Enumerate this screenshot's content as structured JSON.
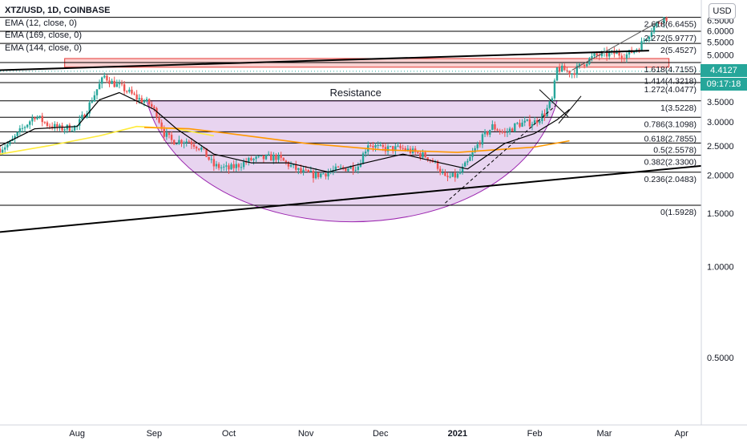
{
  "symbol_title": "XTZ/USD, 1D, COINBASE",
  "indicators": [
    "EMA (12, close, 0)",
    "EMA (169, close, 0)",
    "EMA (144, close, 0)"
  ],
  "currency": "USD",
  "current_price": "4.4127",
  "countdown": "09:17:18",
  "colors": {
    "up": "#26a69a",
    "down": "#ef5350",
    "ema12": "#000000",
    "ema169": "#ff9800",
    "ema144": "#ffeb3b",
    "zone_fill": "#f7b8b8",
    "zone_border": "#e53935",
    "cup_fill": "#d9b8e6",
    "cup_stroke": "#9c27b0"
  },
  "chart_data": {
    "type": "candlestick",
    "title": "XTZ/USD, 1D, COINBASE",
    "y_scale": "log",
    "ylim": [
      0.3,
      7.4
    ],
    "y_ticks": [
      6.5,
      6.0,
      5.5,
      5.0,
      4.5,
      4.0,
      3.5,
      3.0,
      2.5,
      2.0,
      1.5,
      1.0,
      0.5
    ],
    "y_tick_labels": [
      "6.5000",
      "6.0000",
      "5.5000",
      "5.0000",
      "4.5000",
      "4.0000",
      "3.5000",
      "3.0000",
      "2.5000",
      "2.0000",
      "1.5000",
      "1.0000",
      "0.5000"
    ],
    "x_range": [
      "2020-07-01",
      "2021-04-09"
    ],
    "x_ticks": [
      {
        "date": "2020-08-01",
        "label": "Aug"
      },
      {
        "date": "2020-09-01",
        "label": "Sep"
      },
      {
        "date": "2020-10-01",
        "label": "Oct"
      },
      {
        "date": "2020-11-01",
        "label": "Nov"
      },
      {
        "date": "2020-12-01",
        "label": "Dec"
      },
      {
        "date": "2021-01-01",
        "label": "2021"
      },
      {
        "date": "2021-02-01",
        "label": "Feb"
      },
      {
        "date": "2021-03-01",
        "label": "Mar"
      },
      {
        "date": "2021-04-01",
        "label": "Apr"
      }
    ],
    "fib_levels": [
      {
        "ratio": "2.618",
        "value": 6.6455
      },
      {
        "ratio": "2.272",
        "value": 5.9777
      },
      {
        "ratio": "2",
        "value": 5.4527
      },
      {
        "ratio": "1.618",
        "value": 4.7155
      },
      {
        "ratio": "1.414",
        "value": 4.3218
      },
      {
        "ratio": "1.272",
        "value": 4.0477
      },
      {
        "ratio": "1",
        "value": 3.5228
      },
      {
        "ratio": "0.786",
        "value": 3.1098
      },
      {
        "ratio": "0.618",
        "value": 2.7855
      },
      {
        "ratio": "0.5",
        "value": 2.5578
      },
      {
        "ratio": "0.382",
        "value": 2.33
      },
      {
        "ratio": "0.236",
        "value": 2.0483
      },
      {
        "ratio": "0",
        "value": 1.5928
      }
    ],
    "resistance_label": "Resistance",
    "resistance_level": 3.5228,
    "resistance_zone": [
      4.55,
      4.86
    ],
    "trendlines": [
      {
        "from": [
          "2020-07-01",
          4.45
        ],
        "to": [
          "2021-03-19",
          5.16
        ]
      },
      {
        "from": [
          "2020-07-01",
          1.3
        ],
        "to": [
          "2021-04-09",
          2.15
        ]
      }
    ],
    "ohlc_anchors": [
      [
        "2020-07-01",
        2.45
      ],
      [
        "2020-07-05",
        2.55
      ],
      [
        "2020-07-10",
        2.85
      ],
      [
        "2020-07-15",
        3.15
      ],
      [
        "2020-07-20",
        2.95
      ],
      [
        "2020-07-25",
        2.85
      ],
      [
        "2020-08-01",
        2.9
      ],
      [
        "2020-08-05",
        3.3
      ],
      [
        "2020-08-09",
        3.85
      ],
      [
        "2020-08-12",
        4.25
      ],
      [
        "2020-08-15",
        4.05
      ],
      [
        "2020-08-20",
        3.85
      ],
      [
        "2020-08-25",
        3.6
      ],
      [
        "2020-08-30",
        3.45
      ],
      [
        "2020-09-02",
        3.2
      ],
      [
        "2020-09-05",
        2.75
      ],
      [
        "2020-09-08",
        2.6
      ],
      [
        "2020-09-15",
        2.6
      ],
      [
        "2020-09-20",
        2.45
      ],
      [
        "2020-09-25",
        2.15
      ],
      [
        "2020-10-01",
        2.1
      ],
      [
        "2020-10-10",
        2.25
      ],
      [
        "2020-10-20",
        2.3
      ],
      [
        "2020-10-30",
        2.05
      ],
      [
        "2020-11-05",
        2.0
      ],
      [
        "2020-11-15",
        2.1
      ],
      [
        "2020-11-22",
        2.15
      ],
      [
        "2020-11-26",
        2.55
      ],
      [
        "2020-12-01",
        2.45
      ],
      [
        "2020-12-10",
        2.45
      ],
      [
        "2020-12-20",
        2.3
      ],
      [
        "2020-12-24",
        2.15
      ],
      [
        "2020-12-27",
        1.95
      ],
      [
        "2021-01-01",
        2.0
      ],
      [
        "2021-01-05",
        2.2
      ],
      [
        "2021-01-10",
        2.6
      ],
      [
        "2021-01-15",
        2.9
      ],
      [
        "2021-01-20",
        2.75
      ],
      [
        "2021-01-25",
        2.95
      ],
      [
        "2021-02-01",
        3.0
      ],
      [
        "2021-02-05",
        3.2
      ],
      [
        "2021-02-08",
        3.55
      ],
      [
        "2021-02-10",
        4.5
      ],
      [
        "2021-02-13",
        4.45
      ],
      [
        "2021-02-16",
        4.35
      ],
      [
        "2021-02-20",
        4.65
      ],
      [
        "2021-02-25",
        4.95
      ],
      [
        "2021-03-01",
        5.0
      ],
      [
        "2021-03-05",
        5.05
      ],
      [
        "2021-03-10",
        5.0
      ],
      [
        "2021-03-15",
        5.3
      ],
      [
        "2021-03-18",
        5.75
      ],
      [
        "2021-03-21",
        6.2
      ],
      [
        "2021-03-24",
        6.55
      ],
      [
        "2021-03-26",
        6.65
      ]
    ],
    "ema_12": [
      [
        "2020-07-01",
        2.5
      ],
      [
        "2020-07-15",
        2.85
      ],
      [
        "2020-08-01",
        2.9
      ],
      [
        "2020-08-10",
        3.55
      ],
      [
        "2020-08-18",
        3.75
      ],
      [
        "2020-09-01",
        3.3
      ],
      [
        "2020-09-10",
        2.85
      ],
      [
        "2020-09-25",
        2.35
      ],
      [
        "2020-10-10",
        2.2
      ],
      [
        "2020-10-25",
        2.2
      ],
      [
        "2020-11-10",
        2.05
      ],
      [
        "2020-11-25",
        2.2
      ],
      [
        "2020-12-10",
        2.35
      ],
      [
        "2020-12-25",
        2.2
      ],
      [
        "2021-01-05",
        2.1
      ],
      [
        "2021-01-20",
        2.55
      ],
      [
        "2021-02-01",
        2.75
      ],
      [
        "2021-02-10",
        3.05
      ],
      [
        "2021-02-15",
        3.3
      ]
    ],
    "ema_169": [
      [
        "2020-08-28",
        2.88
      ],
      [
        "2020-09-15",
        2.85
      ],
      [
        "2020-10-01",
        2.75
      ],
      [
        "2020-11-01",
        2.55
      ],
      [
        "2020-12-01",
        2.43
      ],
      [
        "2021-01-01",
        2.38
      ],
      [
        "2021-02-01",
        2.48
      ],
      [
        "2021-02-15",
        2.6
      ]
    ],
    "ema_144": [
      [
        "2020-07-01",
        2.35
      ],
      [
        "2020-07-20",
        2.5
      ],
      [
        "2020-08-10",
        2.7
      ],
      [
        "2020-08-25",
        2.9
      ],
      [
        "2020-09-10",
        2.85
      ],
      [
        "2020-09-25",
        2.7
      ]
    ],
    "current_price": 4.4127,
    "grid": false,
    "legend": "top-left"
  }
}
